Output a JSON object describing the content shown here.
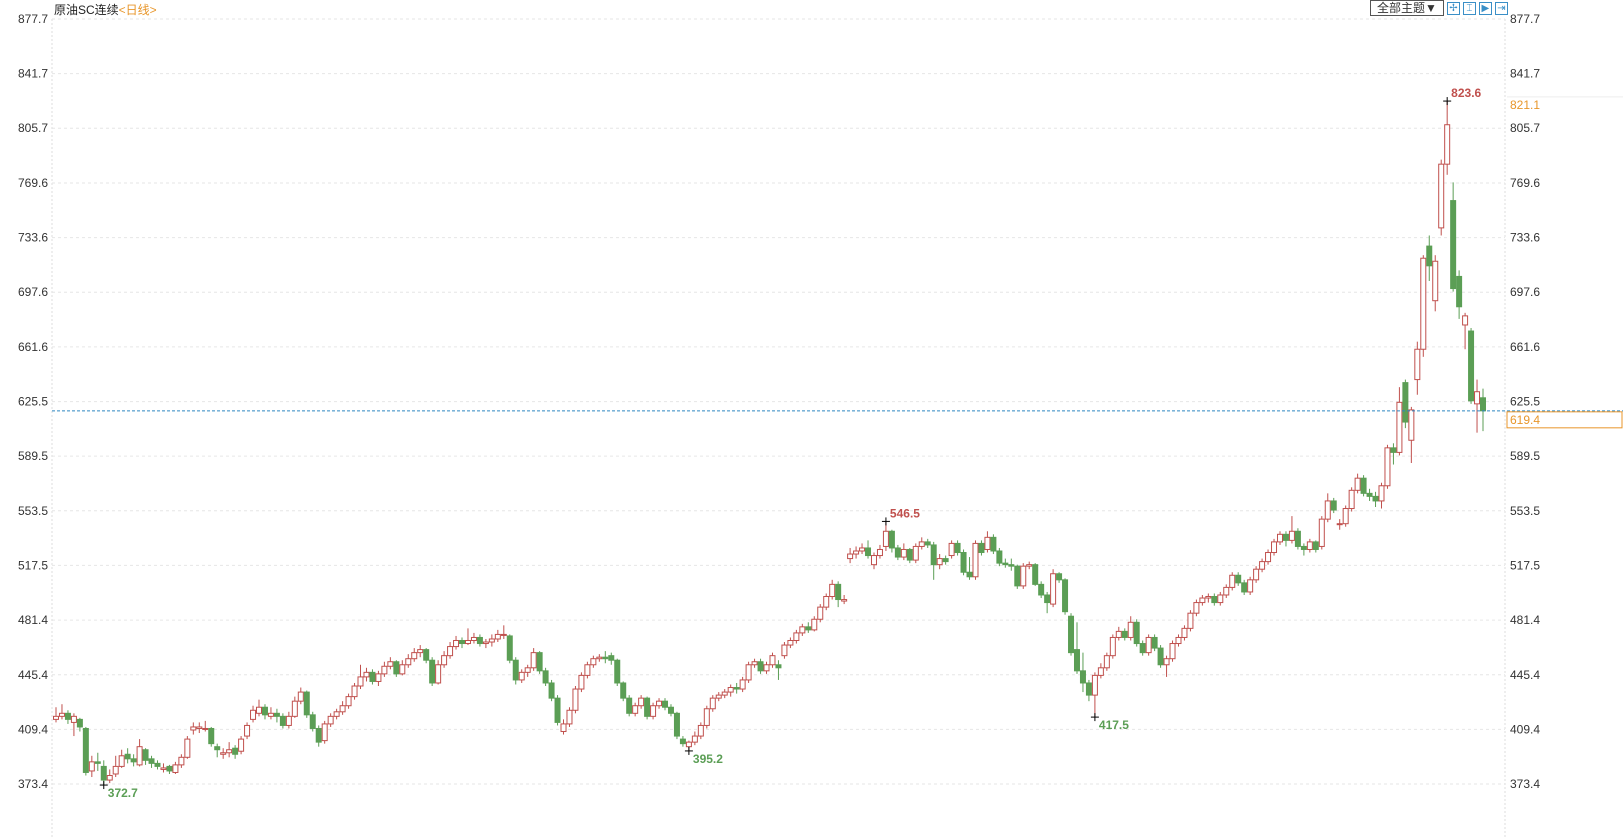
{
  "header": {
    "instrument": "原油SC连续",
    "period": "<日线>"
  },
  "toolbar": {
    "theme_label": "全部主题▼",
    "icons": [
      "crosshair-icon",
      "range-icon",
      "play-icon",
      "exit-icon"
    ],
    "icon_glyphs": [
      "✢",
      "⌶",
      "▶",
      "⇥"
    ]
  },
  "colors": {
    "up": "#c0504d",
    "down": "#5b9e55",
    "current_line": "#2e86c1",
    "current_label": "#e8962a",
    "grid": "#e6e6e6"
  },
  "chart_data": {
    "type": "candlestick",
    "y_ticks": [
      "877.7",
      "841.7",
      "805.7",
      "769.6",
      "733.6",
      "697.6",
      "661.6",
      "625.5",
      "589.5",
      "553.5",
      "517.5",
      "481.4",
      "445.4",
      "409.4",
      "373.4"
    ],
    "ylim": [
      373.4,
      877.7
    ],
    "grid": true,
    "current_price": "619.4",
    "marker_price": "821.1",
    "annotations": [
      {
        "text": "823.6",
        "index": 233,
        "price": 823.6,
        "kind": "high"
      },
      {
        "text": "546.5",
        "index": 139,
        "price": 546.5,
        "kind": "high"
      },
      {
        "text": "372.7",
        "index": 8,
        "price": 372.7,
        "kind": "low"
      },
      {
        "text": "395.2",
        "index": 106,
        "price": 395.2,
        "kind": "low"
      },
      {
        "text": "417.5",
        "index": 174,
        "price": 417.5,
        "kind": "low"
      }
    ],
    "ohlc": [
      [
        416,
        424,
        414,
        418
      ],
      [
        418,
        426,
        416,
        420
      ],
      [
        420,
        422,
        413,
        416
      ],
      [
        414,
        420,
        405,
        418
      ],
      [
        416,
        417,
        408,
        411
      ],
      [
        410,
        411,
        379,
        381
      ],
      [
        382,
        392,
        378,
        388
      ],
      [
        388,
        394,
        382,
        387
      ],
      [
        385,
        389,
        372.7,
        376
      ],
      [
        376,
        383,
        374,
        379
      ],
      [
        380,
        392,
        378,
        385
      ],
      [
        385,
        396,
        384,
        392
      ],
      [
        393,
        397,
        387,
        390
      ],
      [
        390,
        393,
        385,
        388
      ],
      [
        386,
        403,
        385,
        398
      ],
      [
        396,
        397,
        386,
        389
      ],
      [
        390,
        392,
        384,
        387
      ],
      [
        387,
        389,
        383,
        385
      ],
      [
        383,
        387,
        381,
        384
      ],
      [
        385,
        386,
        380,
        382
      ],
      [
        381,
        388,
        380,
        386
      ],
      [
        386,
        393,
        384,
        391
      ],
      [
        391,
        405,
        390,
        403
      ],
      [
        409,
        414,
        406,
        411
      ],
      [
        410,
        414,
        407,
        411
      ],
      [
        410,
        415,
        408,
        410
      ],
      [
        410,
        411,
        398,
        400
      ],
      [
        398,
        400,
        391,
        396
      ],
      [
        393,
        397,
        390,
        394
      ],
      [
        394,
        401,
        391,
        396
      ],
      [
        397,
        399,
        390,
        393
      ],
      [
        395,
        405,
        393,
        403
      ],
      [
        405,
        414,
        403,
        412
      ],
      [
        416,
        425,
        414,
        422
      ],
      [
        420,
        429,
        418,
        424
      ],
      [
        424,
        426,
        416,
        419
      ],
      [
        418,
        424,
        416,
        420
      ],
      [
        420,
        423,
        414,
        418
      ],
      [
        418,
        420,
        410,
        412
      ],
      [
        412,
        421,
        410,
        418
      ],
      [
        418,
        431,
        417,
        428
      ],
      [
        428,
        437,
        426,
        434
      ],
      [
        434,
        435,
        417,
        419
      ],
      [
        419,
        421,
        408,
        410
      ],
      [
        410,
        412,
        398,
        401
      ],
      [
        402,
        415,
        400,
        413
      ],
      [
        413,
        420,
        411,
        418
      ],
      [
        418,
        423,
        416,
        421
      ],
      [
        421,
        428,
        419,
        425
      ],
      [
        425,
        433,
        423,
        431
      ],
      [
        431,
        440,
        429,
        438
      ],
      [
        438,
        452,
        436,
        444
      ],
      [
        444,
        450,
        441,
        447
      ],
      [
        447,
        449,
        439,
        441
      ],
      [
        441,
        448,
        438,
        446
      ],
      [
        446,
        454,
        444,
        451
      ],
      [
        451,
        457,
        449,
        454
      ],
      [
        454,
        455,
        444,
        446
      ],
      [
        446,
        455,
        445,
        452
      ],
      [
        452,
        459,
        450,
        456
      ],
      [
        456,
        463,
        454,
        460
      ],
      [
        460,
        465,
        457,
        462
      ],
      [
        462,
        463,
        453,
        455
      ],
      [
        455,
        457,
        438,
        440
      ],
      [
        440,
        455,
        439,
        452
      ],
      [
        452,
        461,
        450,
        458
      ],
      [
        458,
        467,
        456,
        464
      ],
      [
        464,
        471,
        462,
        468
      ],
      [
        468,
        470,
        463,
        466
      ],
      [
        466,
        476,
        465,
        468
      ],
      [
        468,
        473,
        466,
        470
      ],
      [
        470,
        472,
        464,
        466
      ],
      [
        466,
        469,
        463,
        467
      ],
      [
        467,
        472,
        464,
        469
      ],
      [
        469,
        475,
        467,
        472
      ],
      [
        472,
        478,
        469,
        472
      ],
      [
        471,
        472,
        453,
        455
      ],
      [
        455,
        457,
        439,
        442
      ],
      [
        442,
        449,
        440,
        447
      ],
      [
        447,
        452,
        444,
        450
      ],
      [
        450,
        463,
        448,
        460
      ],
      [
        460,
        461,
        446,
        448
      ],
      [
        448,
        450,
        438,
        440
      ],
      [
        440,
        442,
        428,
        430
      ],
      [
        430,
        432,
        412,
        414
      ],
      [
        408,
        416,
        406,
        413
      ],
      [
        413,
        424,
        411,
        422
      ],
      [
        422,
        438,
        420,
        436
      ],
      [
        436,
        447,
        434,
        445
      ],
      [
        445,
        454,
        443,
        452
      ],
      [
        452,
        458,
        450,
        456
      ],
      [
        456,
        459,
        454,
        457
      ],
      [
        457,
        461,
        453,
        456
      ],
      [
        458,
        460,
        452,
        455
      ],
      [
        455,
        456,
        438,
        440
      ],
      [
        440,
        441,
        428,
        430
      ],
      [
        430,
        432,
        418,
        420
      ],
      [
        420,
        427,
        418,
        425
      ],
      [
        425,
        432,
        423,
        430
      ],
      [
        430,
        431,
        416,
        418
      ],
      [
        418,
        427,
        416,
        425
      ],
      [
        425,
        430,
        423,
        428
      ],
      [
        428,
        430,
        422,
        424
      ],
      [
        424,
        426,
        418,
        420
      ],
      [
        420,
        421,
        403,
        405
      ],
      [
        403,
        405,
        398,
        400
      ],
      [
        398,
        402,
        395.2,
        401
      ],
      [
        401,
        408,
        399,
        405
      ],
      [
        405,
        414,
        403,
        412
      ],
      [
        412,
        425,
        410,
        423
      ],
      [
        423,
        432,
        421,
        430
      ],
      [
        430,
        434,
        428,
        432
      ],
      [
        432,
        436,
        430,
        434
      ],
      [
        434,
        439,
        431,
        437
      ],
      [
        437,
        440,
        433,
        436
      ],
      [
        436,
        444,
        434,
        442
      ],
      [
        442,
        454,
        440,
        452
      ],
      [
        452,
        456,
        450,
        454
      ],
      [
        454,
        456,
        446,
        448
      ],
      [
        448,
        454,
        446,
        452
      ],
      [
        452,
        460,
        450,
        458
      ],
      [
        452,
        455,
        442,
        450
      ],
      [
        458,
        467,
        456,
        465
      ],
      [
        465,
        470,
        463,
        468
      ],
      [
        468,
        475,
        466,
        473
      ],
      [
        473,
        479,
        471,
        477
      ],
      [
        477,
        480,
        473,
        475
      ],
      [
        475,
        484,
        474,
        482
      ],
      [
        482,
        492,
        480,
        490
      ],
      [
        490,
        499,
        488,
        497
      ],
      [
        497,
        508,
        495,
        505
      ],
      [
        505,
        507,
        490,
        495
      ],
      [
        494,
        498,
        492,
        495
      ],
      [
        522,
        529,
        519,
        525
      ],
      [
        525,
        530,
        522,
        527
      ],
      [
        527,
        532,
        525,
        529
      ],
      [
        529,
        534,
        522,
        524
      ],
      [
        518,
        526,
        515,
        524
      ],
      [
        524,
        531,
        522,
        528
      ],
      [
        530,
        546.5,
        527,
        540
      ],
      [
        540,
        541,
        526,
        529
      ],
      [
        529,
        531,
        521,
        523
      ],
      [
        523,
        532,
        521,
        528
      ],
      [
        528,
        529,
        519,
        521
      ],
      [
        521,
        532,
        519,
        530
      ],
      [
        530,
        536,
        528,
        533
      ],
      [
        533,
        535,
        529,
        531
      ],
      [
        531,
        533,
        508,
        518
      ],
      [
        518,
        525,
        515,
        522
      ],
      [
        522,
        524,
        518,
        520
      ],
      [
        524,
        534,
        522,
        532
      ],
      [
        532,
        534,
        524,
        526
      ],
      [
        526,
        528,
        511,
        513
      ],
      [
        513,
        523,
        508,
        510
      ],
      [
        510,
        534,
        508,
        532
      ],
      [
        532,
        534,
        524,
        526
      ],
      [
        528,
        540,
        526,
        536
      ],
      [
        536,
        538,
        525,
        527
      ],
      [
        527,
        529,
        517,
        519
      ],
      [
        519,
        522,
        516,
        518
      ],
      [
        518,
        522,
        514,
        517
      ],
      [
        517,
        518,
        502,
        504
      ],
      [
        504,
        519,
        502,
        517
      ],
      [
        517,
        520,
        515,
        518
      ],
      [
        518,
        519,
        504,
        505
      ],
      [
        505,
        507,
        496,
        498
      ],
      [
        498,
        500,
        486,
        493
      ],
      [
        492,
        515,
        490,
        512
      ],
      [
        512,
        513,
        506,
        508
      ],
      [
        508,
        509,
        485,
        487
      ],
      [
        484,
        486,
        458,
        460
      ],
      [
        462,
        480,
        446,
        448
      ],
      [
        448,
        460,
        434,
        440
      ],
      [
        440,
        442,
        428,
        432
      ],
      [
        432,
        447,
        417.5,
        445
      ],
      [
        445,
        453,
        443,
        450
      ],
      [
        450,
        460,
        448,
        458
      ],
      [
        458,
        472,
        456,
        470
      ],
      [
        470,
        477,
        468,
        474
      ],
      [
        474,
        476,
        468,
        470
      ],
      [
        470,
        484,
        468,
        480
      ],
      [
        480,
        482,
        464,
        466
      ],
      [
        466,
        468,
        458,
        460
      ],
      [
        460,
        472,
        458,
        470
      ],
      [
        470,
        472,
        461,
        463
      ],
      [
        463,
        465,
        450,
        452
      ],
      [
        452,
        458,
        444,
        456
      ],
      [
        456,
        468,
        454,
        466
      ],
      [
        466,
        472,
        464,
        470
      ],
      [
        470,
        478,
        468,
        476
      ],
      [
        476,
        488,
        474,
        486
      ],
      [
        486,
        495,
        484,
        493
      ],
      [
        493,
        498,
        491,
        496
      ],
      [
        496,
        499,
        493,
        497
      ],
      [
        497,
        499,
        491,
        493
      ],
      [
        493,
        500,
        491,
        498
      ],
      [
        498,
        505,
        496,
        503
      ],
      [
        503,
        513,
        501,
        511
      ],
      [
        511,
        513,
        504,
        506
      ],
      [
        506,
        508,
        498,
        500
      ],
      [
        500,
        510,
        498,
        508
      ],
      [
        508,
        517,
        506,
        515
      ],
      [
        515,
        522,
        513,
        520
      ],
      [
        520,
        528,
        518,
        526
      ],
      [
        526,
        535,
        524,
        533
      ],
      [
        533,
        540,
        531,
        538
      ],
      [
        538,
        540,
        530,
        534
      ],
      [
        534,
        550,
        532,
        540
      ],
      [
        540,
        542,
        528,
        530
      ],
      [
        530,
        532,
        524,
        528
      ],
      [
        528,
        535,
        526,
        533
      ],
      [
        533,
        534,
        526,
        528
      ],
      [
        530,
        550,
        528,
        548
      ],
      [
        548,
        565,
        546,
        560
      ],
      [
        560,
        562,
        552,
        554
      ],
      [
        545,
        548,
        541,
        545
      ],
      [
        545,
        557,
        543,
        555
      ],
      [
        555,
        569,
        553,
        567
      ],
      [
        567,
        578,
        565,
        575
      ],
      [
        575,
        577,
        563,
        565
      ],
      [
        565,
        568,
        560,
        563
      ],
      [
        563,
        566,
        556,
        560
      ],
      [
        560,
        572,
        555,
        570
      ],
      [
        570,
        597,
        568,
        595
      ],
      [
        595,
        598,
        584,
        592
      ],
      [
        592,
        635,
        590,
        625
      ],
      [
        638,
        640,
        608,
        612
      ],
      [
        600,
        622,
        585,
        620
      ],
      [
        640,
        665,
        630,
        660
      ],
      [
        660,
        722,
        655,
        720
      ],
      [
        728,
        735,
        705,
        715
      ],
      [
        692,
        722,
        685,
        718
      ],
      [
        740,
        785,
        735,
        782
      ],
      [
        782,
        823.6,
        775,
        808
      ],
      [
        758,
        770,
        698,
        700
      ],
      [
        708,
        712,
        680,
        688
      ],
      [
        676,
        684,
        660,
        682
      ],
      [
        672,
        674,
        624,
        626
      ],
      [
        624,
        640,
        605,
        632
      ],
      [
        628,
        634,
        606,
        619.4
      ]
    ]
  }
}
